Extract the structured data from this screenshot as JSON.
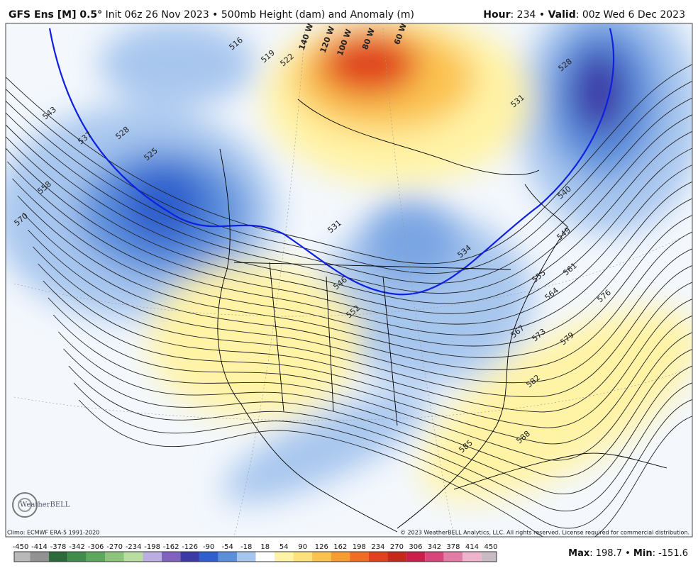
{
  "header": {
    "model": "GFS Ens [M] 0.5°",
    "description": "Init 06z 26 Nov 2023 • 500mb Height (dam) and Anomaly (m)",
    "hour_label": "Hour",
    "hour_text": ": 234 •",
    "valid_label": "Valid",
    "valid_text": ": 00z Wed 6 Dec 2023"
  },
  "map": {
    "contour_labels": [
      "516",
      "519",
      "522",
      "531",
      "528",
      "543",
      "537",
      "528",
      "525",
      "558",
      "570",
      "531",
      "534",
      "546",
      "552",
      "549",
      "555",
      "561",
      "564",
      "576",
      "567",
      "573",
      "579",
      "582",
      "585",
      "588",
      "540"
    ],
    "longitude_labels": [
      "140 W",
      "120 W",
      "100 W",
      "80 W",
      "60 W"
    ],
    "logo": "WeatherBELL"
  },
  "footer": {
    "climo": "Climo: ECMWF ERA-5 1991-2020",
    "copyright": "© 2023 WeatherBELL Analytics, LLC. All rights reserved. License required for commercial distribution."
  },
  "colorbar": {
    "ticks": [
      -450,
      -414,
      -378,
      -342,
      -306,
      -270,
      -234,
      -198,
      -162,
      -126,
      -90,
      -54,
      -18,
      18,
      54,
      90,
      126,
      162,
      198,
      234,
      270,
      306,
      342,
      378,
      414,
      450
    ],
    "colors": [
      "#b9b9b9",
      "#929292",
      "#2d6a3b",
      "#3f8c4d",
      "#5ea75e",
      "#8cc47b",
      "#b9dca0",
      "#bcaee0",
      "#7f63bd",
      "#3d3aa8",
      "#2f5fcc",
      "#5b8fdc",
      "#a7c6ee",
      "#ffffff",
      "#fff3a6",
      "#fde27a",
      "#fbc24f",
      "#f79b33",
      "#f06e23",
      "#e0431b",
      "#c32a1c",
      "#c8204a",
      "#d8457a",
      "#e27ca6",
      "#efb3cc",
      "#c8bcc4"
    ]
  },
  "stats": {
    "max_label": "Max",
    "max_text": ": 198.7 •",
    "min_label": "Min",
    "min_text": ": -151.6"
  }
}
